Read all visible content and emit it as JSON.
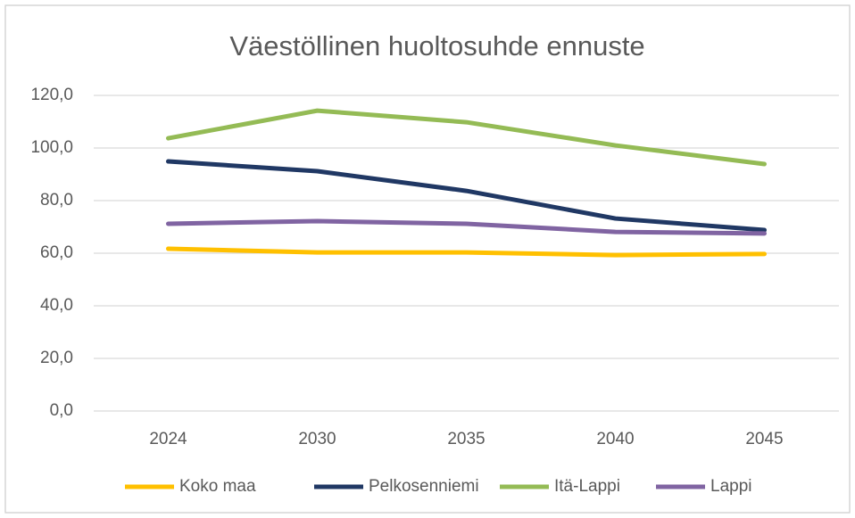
{
  "chart_data": {
    "type": "line",
    "title": "Väestöllinen huoltosuhde ennuste",
    "categories": [
      "2024",
      "2030",
      "2035",
      "2040",
      "2045"
    ],
    "series": [
      {
        "name": "Koko maa",
        "color": "#ffc000",
        "values": [
          61.7,
          60.3,
          60.3,
          59.3,
          59.7
        ]
      },
      {
        "name": "Pelkosenniemi",
        "color": "#203864",
        "values": [
          94.9,
          91.2,
          83.7,
          73.2,
          68.8
        ]
      },
      {
        "name": "Itä-Lappi",
        "color": "#94bb55",
        "values": [
          103.7,
          114.2,
          109.8,
          101.0,
          93.9
        ]
      },
      {
        "name": "Lappi",
        "color": "#8064a2",
        "values": [
          71.2,
          72.2,
          71.2,
          68.1,
          67.5
        ]
      }
    ],
    "ylim": [
      0,
      120
    ],
    "yticks": [
      {
        "value": 0,
        "label": "0,0"
      },
      {
        "value": 20,
        "label": "20,0"
      },
      {
        "value": 40,
        "label": "40,0"
      },
      {
        "value": 60,
        "label": "60,0"
      },
      {
        "value": 80,
        "label": "80,0"
      },
      {
        "value": 100,
        "label": "100,0"
      },
      {
        "value": 120,
        "label": "120,0"
      }
    ],
    "grid": true,
    "legend": "bottom"
  }
}
